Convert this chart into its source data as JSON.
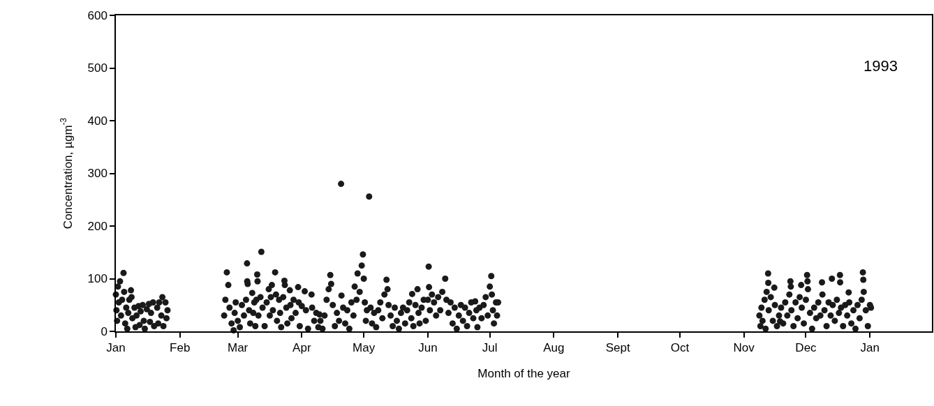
{
  "chart_data": {
    "type": "scatter",
    "ylabel": "Concentration, µgm$^{-3}$",
    "xlabel": "Month of the year",
    "annotations": [
      "1993"
    ],
    "marker": "circle",
    "grid": false,
    "xlim": [
      "1993-01-01",
      "1994-01-31"
    ],
    "xticks": [
      {
        "value": "1993-01-01",
        "label": "Jan"
      },
      {
        "value": "1993-02-01",
        "label": "Feb"
      },
      {
        "value": "1993-03-01",
        "label": "Mar"
      },
      {
        "value": "1993-04-01",
        "label": "Apr"
      },
      {
        "value": "1993-05-01",
        "label": "May"
      },
      {
        "value": "1993-06-01",
        "label": "Jun"
      },
      {
        "value": "1993-07-01",
        "label": "Jul"
      },
      {
        "value": "1993-08-01",
        "label": "Aug"
      },
      {
        "value": "1993-09-01",
        "label": "Sept"
      },
      {
        "value": "1993-10-01",
        "label": "Oct"
      },
      {
        "value": "1993-11-01",
        "label": "Nov"
      },
      {
        "value": "1993-12-01",
        "label": "Dec"
      },
      {
        "value": "1994-01-01",
        "label": "Jan"
      }
    ],
    "ylim": [
      0,
      600
    ],
    "yticks": [
      0,
      100,
      200,
      300,
      400,
      500,
      600
    ],
    "series": [
      {
        "color": "#1a1a1a",
        "x": [
          "1993-01-01",
          "1993-01-01T07:00",
          "1993-01-01T14:00",
          "1993-01-02",
          "1993-01-02T10:00",
          "1993-01-03",
          "1993-01-03T12:00",
          "1993-01-04",
          "1993-01-04T17:00",
          "1993-01-05",
          "1993-01-05T12:00",
          "1993-01-06",
          "1993-01-06T12:00",
          "1993-01-07",
          "1993-01-07T12:00",
          "1993-01-08T07:00",
          "1993-01-08T14:00",
          "1993-01-09",
          "1993-01-10",
          "1993-01-10T12:00",
          "1993-01-11",
          "1993-01-12",
          "1993-01-12T12:00",
          "1993-01-13",
          "1993-01-14",
          "1993-01-14T12:00",
          "1993-01-15",
          "1993-01-16",
          "1993-01-17",
          "1993-01-17T12:00",
          "1993-01-18",
          "1993-01-19",
          "1993-01-19T12:00",
          "1993-01-21",
          "1993-01-21T12:00",
          "1993-01-22",
          "1993-01-23",
          "1993-01-23T12:00",
          "1993-01-24",
          "1993-01-25",
          "1993-01-25T12:00",
          "1993-01-26",
          "1993-02-22T10:00",
          "1993-02-23",
          "1993-02-23T17:00",
          "1993-02-24T10:00",
          "1993-02-25",
          "1993-02-26",
          "1993-02-27",
          "1993-02-27T12:00",
          "1993-02-28",
          "1993-03-01",
          "1993-03-02",
          "1993-03-03",
          "1993-03-04",
          "1993-03-05",
          "1993-03-05T12:00",
          "1993-03-05T14:00",
          "1993-03-05T19:00",
          "1993-03-06T12:00",
          "1993-03-07",
          "1993-03-08",
          "1993-03-08T12:00",
          "1993-03-09",
          "1993-03-09T12:00",
          "1993-03-10",
          "1993-03-10T10:00",
          "1993-03-10T14:00",
          "1993-03-11",
          "1993-03-12",
          "1993-03-12T10:00",
          "1993-03-13",
          "1993-03-14",
          "1993-03-15",
          "1993-03-16",
          "1993-03-16T12:00",
          "1993-03-17",
          "1993-03-17T12:00",
          "1993-03-18",
          "1993-03-19T02:00",
          "1993-03-19T12:00",
          "1993-03-20",
          "1993-03-21",
          "1993-03-21T12:00",
          "1993-03-22",
          "1993-03-23",
          "1993-03-23T14:00",
          "1993-03-23T19:00",
          "1993-03-24T12:00",
          "1993-03-25",
          "1993-03-26T05:00",
          "1993-03-26T12:00",
          "1993-03-27",
          "1993-03-28",
          "1993-03-29",
          "1993-03-30T05:00",
          "1993-03-30T12:00",
          "1993-03-31",
          "1993-04-01",
          "1993-04-02T10:00",
          "1993-04-03",
          "1993-04-04",
          "1993-04-05T17:00",
          "1993-04-06",
          "1993-04-07",
          "1993-04-08",
          "1993-04-09",
          "1993-04-09T14:00",
          "1993-04-10",
          "1993-04-11",
          "1993-04-12",
          "1993-04-13",
          "1993-04-14",
          "1993-04-14T19:00",
          "1993-04-15T05:00",
          "1993-04-16",
          "1993-04-17",
          "1993-04-18",
          "1993-04-19",
          "1993-04-20",
          "1993-04-20T05:00",
          "1993-04-21",
          "1993-04-22",
          "1993-04-23",
          "1993-04-24",
          "1993-04-25",
          "1993-04-26",
          "1993-04-26T14:00",
          "1993-04-27T12:00",
          "1993-04-28",
          "1993-04-29",
          "1993-04-30",
          "1993-04-30T14:00",
          "1993-05-01",
          "1993-05-01T12:00",
          "1993-05-02",
          "1993-05-02T12:00",
          "1993-05-03T14:00",
          "1993-05-04T07:00",
          "1993-05-05",
          "1993-05-06",
          "1993-05-07",
          "1993-05-08",
          "1993-05-09",
          "1993-05-10",
          "1993-05-11",
          "1993-05-12",
          "1993-05-12T12:00",
          "1993-05-13",
          "1993-05-14",
          "1993-05-15",
          "1993-05-16",
          "1993-05-17",
          "1993-05-18",
          "1993-05-19",
          "1993-05-20",
          "1993-05-21",
          "1993-05-22",
          "1993-05-23",
          "1993-05-24",
          "1993-05-24T10:00",
          "1993-05-25",
          "1993-05-26",
          "1993-05-27",
          "1993-05-27T12:00",
          "1993-05-28",
          "1993-05-29",
          "1993-05-30",
          "1993-05-31",
          "1993-06-01",
          "1993-06-01T10:00",
          "1993-06-01T14:00",
          "1993-06-02",
          "1993-06-03",
          "1993-06-04",
          "1993-06-05",
          "1993-06-06",
          "1993-06-07",
          "1993-06-08",
          "1993-06-09T10:00",
          "1993-06-10",
          "1993-06-11",
          "1993-06-12",
          "1993-06-13",
          "1993-06-14",
          "1993-06-15",
          "1993-06-16",
          "1993-06-17",
          "1993-06-18",
          "1993-06-19",
          "1993-06-20",
          "1993-06-21",
          "1993-06-22",
          "1993-06-23",
          "1993-06-23T22:00",
          "1993-06-24T12:00",
          "1993-06-25",
          "1993-06-26",
          "1993-06-27",
          "1993-06-28",
          "1993-06-29",
          "1993-06-30",
          "1993-07-01",
          "1993-07-01T17:00",
          "1993-07-02",
          "1993-07-02T12:00",
          "1993-07-03",
          "1993-07-04",
          "1993-07-04T12:00",
          "1993-07-05",
          "1993-11-08T12:00",
          "1993-11-09",
          "1993-11-09T12:00",
          "1993-11-10",
          "1993-11-11",
          "1993-11-11T12:00",
          "1993-11-12",
          "1993-11-12T17:00",
          "1993-11-12T19:00",
          "1993-11-13",
          "1993-11-14",
          "1993-11-15",
          "1993-11-15T17:00",
          "1993-11-16",
          "1993-11-17",
          "1993-11-18",
          "1993-11-18T12:00",
          "1993-11-19",
          "1993-11-20",
          "1993-11-21",
          "1993-11-22",
          "1993-11-23",
          "1993-11-23T12:00",
          "1993-11-23T17:00",
          "1993-11-24",
          "1993-11-25",
          "1993-11-26",
          "1993-11-27",
          "1993-11-28",
          "1993-11-28T17:00",
          "1993-11-29",
          "1993-11-30",
          "1993-12-01",
          "1993-12-01T14:00",
          "1993-12-01T19:00",
          "1993-12-02",
          "1993-12-03",
          "1993-12-04",
          "1993-12-05",
          "1993-12-06",
          "1993-12-07",
          "1993-12-08",
          "1993-12-08T19:00",
          "1993-12-09",
          "1993-12-10",
          "1993-12-11",
          "1993-12-12",
          "1993-12-13",
          "1993-12-13T14:00",
          "1993-12-14",
          "1993-12-15",
          "1993-12-16",
          "1993-12-17",
          "1993-12-17T12:00",
          "1993-12-17T14:00",
          "1993-12-18",
          "1993-12-19",
          "1993-12-20",
          "1993-12-21",
          "1993-12-21T17:00",
          "1993-12-22",
          "1993-12-23",
          "1993-12-24",
          "1993-12-25",
          "1993-12-26",
          "1993-12-27",
          "1993-12-28",
          "1993-12-28T14:00",
          "1993-12-28T19:00",
          "1993-12-29",
          "1993-12-30",
          "1993-12-31",
          "1994-01-01",
          "1994-01-01T12:00"
        ],
        "values": [
          70,
          40,
          20,
          85,
          55,
          95,
          30,
          60,
          111,
          75,
          15,
          45,
          5,
          35,
          60,
          78,
          65,
          25,
          45,
          8,
          30,
          48,
          12,
          38,
          50,
          20,
          5,
          42,
          52,
          18,
          35,
          55,
          10,
          45,
          15,
          55,
          30,
          65,
          10,
          55,
          25,
          40,
          30,
          60,
          112,
          88,
          45,
          15,
          2,
          35,
          55,
          20,
          8,
          50,
          30,
          60,
          129,
          95,
          90,
          40,
          15,
          73,
          35,
          55,
          10,
          60,
          108,
          95,
          30,
          65,
          151,
          45,
          10,
          55,
          80,
          30,
          65,
          88,
          40,
          112,
          70,
          20,
          60,
          35,
          8,
          65,
          96,
          88,
          45,
          15,
          78,
          50,
          25,
          60,
          35,
          84,
          55,
          10,
          48,
          76,
          40,
          5,
          70,
          45,
          20,
          35,
          8,
          32,
          20,
          5,
          30,
          60,
          80,
          107,
          90,
          50,
          10,
          35,
          20,
          280,
          68,
          45,
          15,
          40,
          5,
          55,
          30,
          85,
          60,
          110,
          75,
          125,
          146,
          100,
          55,
          20,
          40,
          256,
          45,
          15,
          35,
          8,
          40,
          55,
          25,
          70,
          98,
          80,
          50,
          30,
          10,
          45,
          20,
          5,
          35,
          45,
          15,
          40,
          55,
          25,
          71,
          10,
          50,
          80,
          35,
          15,
          45,
          60,
          20,
          60,
          123,
          84,
          40,
          70,
          55,
          30,
          65,
          40,
          75,
          100,
          60,
          35,
          55,
          15,
          45,
          5,
          30,
          50,
          20,
          45,
          10,
          35,
          55,
          25,
          57,
          40,
          8,
          45,
          25,
          50,
          65,
          30,
          85,
          105,
          70,
          40,
          15,
          55,
          30,
          55,
          30,
          10,
          45,
          20,
          60,
          5,
          75,
          110,
          92,
          40,
          65,
          20,
          83,
          50,
          10,
          30,
          19,
          45,
          15,
          55,
          30,
          70,
          95,
          85,
          40,
          10,
          55,
          25,
          65,
          88,
          45,
          15,
          60,
          107,
          95,
          80,
          35,
          5,
          45,
          25,
          55,
          30,
          93,
          70,
          40,
          10,
          55,
          30,
          100,
          50,
          20,
          60,
          35,
          107,
          93,
          45,
          10,
          50,
          30,
          74,
          55,
          15,
          40,
          5,
          50,
          25,
          60,
          112,
          98,
          75,
          40,
          10,
          50,
          45
        ]
      }
    ]
  }
}
